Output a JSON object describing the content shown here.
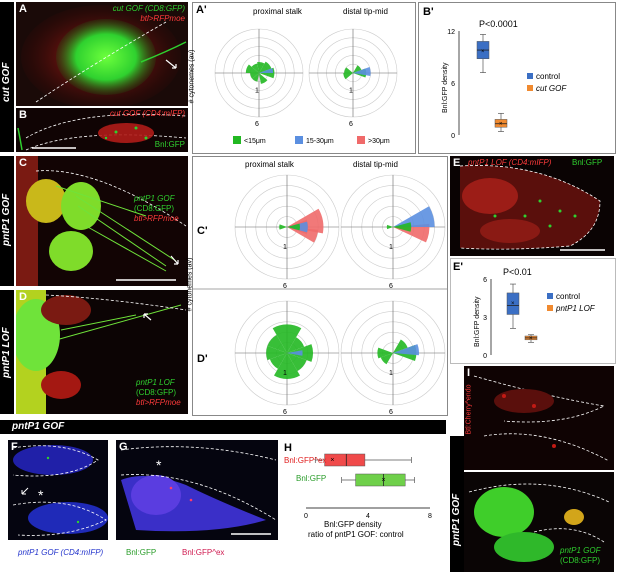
{
  "rows": {
    "cut_gof": "cut GOF",
    "pntp1_gof": "pntP1 GOF",
    "pntp1_lof": "pntP1 LOF",
    "pntp1_gof_banner": "pntP1 GOF"
  },
  "panels": {
    "A": {
      "letter": "A",
      "line1": "cut GOF (CD8:GFP)",
      "line2": "btl>RFPmoe"
    },
    "B": {
      "letter": "B",
      "line1": "cut GOF (CD4:mIFP)",
      "line2": "Bnl:GFP"
    },
    "C": {
      "letter": "C",
      "line1": "pntP1 GOF",
      "line2": "(CD8:GFP)",
      "line3": "btl>RFPmoe"
    },
    "D": {
      "letter": "D",
      "line1": "pntP1 LOF",
      "line2": "(CD8:GFP)",
      "line3": "btl>RFPmoe"
    },
    "E": {
      "letter": "E",
      "line1": "pntP1 LOF (CD4:mIFP)",
      "line2": "Bnl:GFP"
    },
    "F": {
      "letter": "F",
      "caption": "pntP1 GOF (CD4:mIFP)"
    },
    "G": {
      "letter": "G",
      "caption1": "Bnl:GFP",
      "caption2": "Bnl:GFP^ex"
    },
    "I": {
      "letter": "I",
      "label1": "Btl:Cherry^endo",
      "label2": "pntP1 GOF",
      "label3": "(CD8:GFP)",
      "side": "pntP1 GOF"
    }
  },
  "rose": {
    "A_prime": "A'",
    "C_prime": "C'",
    "D_prime": "D'",
    "titles": [
      "proximal stalk",
      "distal tip-mid"
    ],
    "ylabel": "# cytonemes (av)",
    "tick_inner": "1",
    "tick_outer": "6",
    "legend": [
      {
        "label": "<15μm",
        "color": "#22b822"
      },
      {
        "label": "15-30μm",
        "color": "#5b8fe0"
      },
      {
        "label": ">30μm",
        "color": "#f06a6a"
      }
    ]
  },
  "chart_data": [
    {
      "type": "box",
      "panel": "B'",
      "title": "",
      "ylabel": "Bnl:GFP density",
      "pvalue": "P<0.0001",
      "ylim": [
        0,
        12
      ],
      "yticks": [
        "12",
        "6",
        "0"
      ],
      "series": [
        {
          "name": "control",
          "color": "#3b6fc4",
          "min": 7.2,
          "q1": 8.8,
          "median": 9.8,
          "q3": 10.8,
          "max": 11.6,
          "mean": 9.7
        },
        {
          "name": "cut GOF",
          "color": "#f08a30",
          "min": 0.4,
          "q1": 0.9,
          "median": 1.3,
          "q3": 1.8,
          "max": 2.5,
          "mean": 1.3
        }
      ]
    },
    {
      "type": "box",
      "panel": "E'",
      "title": "",
      "ylabel": "Bnl:GFP density",
      "pvalue": "P<0.01",
      "ylim": [
        0,
        6
      ],
      "yticks": [
        "6",
        "3",
        "0"
      ],
      "series": [
        {
          "name": "control",
          "color": "#3b6fc4",
          "min": 2.1,
          "q1": 3.2,
          "median": 3.9,
          "q3": 4.9,
          "max": 5.6,
          "mean": 4.1
        },
        {
          "name": "pntP1 LOF",
          "color": "#f08a30",
          "min": 1.0,
          "q1": 1.2,
          "median": 1.35,
          "q3": 1.5,
          "max": 1.6,
          "mean": 1.35
        }
      ]
    },
    {
      "type": "box",
      "panel": "H",
      "orientation": "horizontal",
      "xlabel": "Bnl:GFP density",
      "xlabel2": "ratio of pntP1 GOF: control",
      "xlim": [
        0,
        8
      ],
      "xticks": [
        "0",
        "4",
        "8"
      ],
      "series": [
        {
          "name": "Bnl:GFPex",
          "color": "#f04a4a",
          "min": 0.6,
          "q1": 1.2,
          "median": 2.6,
          "q3": 3.8,
          "max": 6.8,
          "mean": 1.7
        },
        {
          "name": "Bnl:GFP",
          "color": "#6fd04a",
          "min": 2.3,
          "q1": 3.2,
          "median": 5.0,
          "q3": 6.4,
          "max": 7.0,
          "mean": 5.0
        }
      ]
    }
  ],
  "legend_B": {
    "control": "control",
    "cut": "cut GOF"
  },
  "legend_E": {
    "control": "control",
    "lof": "pntP1 LOF"
  },
  "H": {
    "letter": "H",
    "label_ex": "Bnl:GFP^ex",
    "label_gfp": "Bnl:GFP",
    "xlabel": "Bnl:GFP density",
    "xlabel2": "ratio of pntP1 GOF: control"
  }
}
